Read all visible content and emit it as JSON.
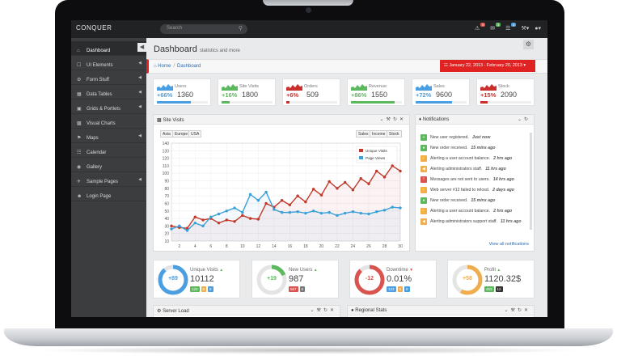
{
  "app": {
    "logo": "CONQUER"
  },
  "search": {
    "placeholder": "Search"
  },
  "topbar": {
    "badges": [
      "5",
      "3",
      "8"
    ]
  },
  "sidebar": {
    "items": [
      {
        "label": "Dashboard",
        "icon": "home-icon",
        "active": true
      },
      {
        "label": "UI Elements",
        "icon": "bookmark-icon"
      },
      {
        "label": "Form Stuff",
        "icon": "cogs-icon"
      },
      {
        "label": "Data Tables",
        "icon": "table-icon"
      },
      {
        "label": "Grids & Portlets",
        "icon": "th-icon"
      },
      {
        "label": "Visual Charts",
        "icon": "chart-icon"
      },
      {
        "label": "Maps",
        "icon": "map-marker-icon"
      },
      {
        "label": "Calendar",
        "icon": "calendar-icon"
      },
      {
        "label": "Gallery",
        "icon": "camera-icon"
      },
      {
        "label": "Sample Pages",
        "icon": "plane-icon"
      },
      {
        "label": "Login Page",
        "icon": "user-icon"
      }
    ]
  },
  "page": {
    "title": "Dashboard",
    "subtitle": "statistics and more"
  },
  "breadcrumb": {
    "home": "Home",
    "current": "Dashboard"
  },
  "daterange": {
    "label": "January 22, 2013 - February 20, 2013"
  },
  "stats": [
    {
      "label": "Users",
      "pct": "+66%",
      "value": "1360",
      "color": "#4b9fe0",
      "progress": 0.66
    },
    {
      "label": "Site Visits",
      "pct": "+16%",
      "value": "1800",
      "color": "#5cb85c",
      "progress": 0.16
    },
    {
      "label": "Orders",
      "pct": "+6%",
      "value": "509",
      "color": "#c9302c",
      "progress": 0.06
    },
    {
      "label": "Revenue",
      "pct": "+86%",
      "value": "1550",
      "color": "#5cb85c",
      "progress": 0.86
    },
    {
      "label": "Sales",
      "pct": "+72%",
      "value": "9600",
      "color": "#4b9fe0",
      "progress": 0.72
    },
    {
      "label": "Stock",
      "pct": "+15%",
      "value": "2090",
      "color": "#c9302c",
      "progress": 0.15
    }
  ],
  "site_visits": {
    "title": "Site Visits",
    "tabs_left": [
      "Asia",
      "Europe",
      "USA"
    ],
    "tabs_right": [
      "Sales",
      "Income",
      "Stock"
    ]
  },
  "chart_data": {
    "type": "line",
    "x": [
      1,
      2,
      3,
      4,
      5,
      6,
      7,
      8,
      9,
      10,
      11,
      12,
      13,
      14,
      15,
      16,
      17,
      18,
      19,
      20,
      21,
      22,
      23,
      24,
      25,
      26,
      27,
      28,
      29,
      30
    ],
    "xticks": [
      2,
      4,
      6,
      8,
      10,
      12,
      14,
      16,
      18,
      20,
      22,
      24,
      26,
      28,
      30
    ],
    "yticks": [
      10,
      20,
      30,
      40,
      50,
      60,
      70,
      80,
      90,
      100,
      110,
      120,
      130,
      140
    ],
    "ylim": [
      10,
      140
    ],
    "series": [
      {
        "name": "Unique Visits",
        "color": "#c0392b",
        "values": [
          30,
          28,
          27,
          42,
          38,
          40,
          34,
          38,
          36,
          44,
          40,
          39,
          60,
          55,
          64,
          58,
          70,
          62,
          79,
          71,
          89,
          80,
          88,
          78,
          93,
          86,
          103,
          95,
          110,
          103
        ]
      },
      {
        "name": "Page Views",
        "color": "#3aa0d8",
        "values": [
          26,
          30,
          24,
          34,
          30,
          42,
          46,
          50,
          54,
          48,
          72,
          64,
          75,
          52,
          48,
          48,
          49,
          47,
          50,
          47,
          48,
          44,
          47,
          49,
          47,
          46,
          49,
          51,
          55,
          54
        ]
      }
    ]
  },
  "notifications": {
    "title": "Notifications",
    "items": [
      {
        "text": "New user registered.",
        "time": "Just now",
        "color": "#5cb85c",
        "icon": "plus-icon"
      },
      {
        "text": "New order received.",
        "time": "15 mins ago",
        "color": "#5cb85c",
        "icon": "bell-icon"
      },
      {
        "text": "Alerting a user account balance.",
        "time": "2 hrs ago",
        "color": "#f0ad4e",
        "icon": "bolt-icon"
      },
      {
        "text": "Alerting administrators staff.",
        "time": "11 hrs ago",
        "color": "#f0ad4e",
        "icon": "bullhorn-icon"
      },
      {
        "text": "Messages are not sent to users.",
        "time": "14 hrs ago",
        "color": "#d9534f",
        "icon": "warning-icon"
      },
      {
        "text": "Web server #12 failed to relosd.",
        "time": "2 days ago",
        "color": "#f0ad4e",
        "icon": "bolt-icon"
      },
      {
        "text": "New order received.",
        "time": "15 mins ago",
        "color": "#5cb85c",
        "icon": "bell-icon"
      },
      {
        "text": "Alerting a user account balance.",
        "time": "2 hrs ago",
        "color": "#f0ad4e",
        "icon": "bolt-icon"
      },
      {
        "text": "Alerting administrators support staff.",
        "time": "11 hrs ago",
        "color": "#f0ad4e",
        "icon": "bullhorn-icon"
      }
    ],
    "view_all": "View all notifications"
  },
  "circles": [
    {
      "label": "Unique Visits",
      "value": "10112",
      "num": "+89",
      "progress": 0.89,
      "color": "#4b9fe0",
      "trend": "up",
      "badges": [
        {
          "text": "123",
          "color": "#5cb85c"
        },
        {
          "text": "5",
          "color": "#f0ad4e"
        },
        {
          "text": "8",
          "color": "#4b9fe0"
        }
      ]
    },
    {
      "label": "New Users",
      "value": "987",
      "num": "+19",
      "progress": 0.19,
      "color": "#5cb85c",
      "trend": "up",
      "badges": [
        {
          "text": "567",
          "color": "#d9534f"
        },
        {
          "text": "8",
          "color": "#777777"
        }
      ]
    },
    {
      "label": "Downtime",
      "value": "0.01%",
      "num": "-12",
      "progress": 0.88,
      "color": "#d9534f",
      "trend": "down",
      "badges": [
        {
          "text": "123",
          "color": "#4b9fe0"
        },
        {
          "text": "5",
          "color": "#f0ad4e"
        },
        {
          "text": "8",
          "color": "#4b9fe0"
        }
      ]
    },
    {
      "label": "Profit",
      "value": "1120.32$",
      "num": "+58",
      "progress": 0.58,
      "color": "#f0ad4e",
      "trend": "up",
      "badges": [
        {
          "text": "453",
          "color": "#5cb85c"
        },
        {
          "text": "12",
          "color": "#333333"
        }
      ]
    }
  ],
  "bottom_panels": {
    "left": "Server Load",
    "right": "Regional Stats"
  }
}
